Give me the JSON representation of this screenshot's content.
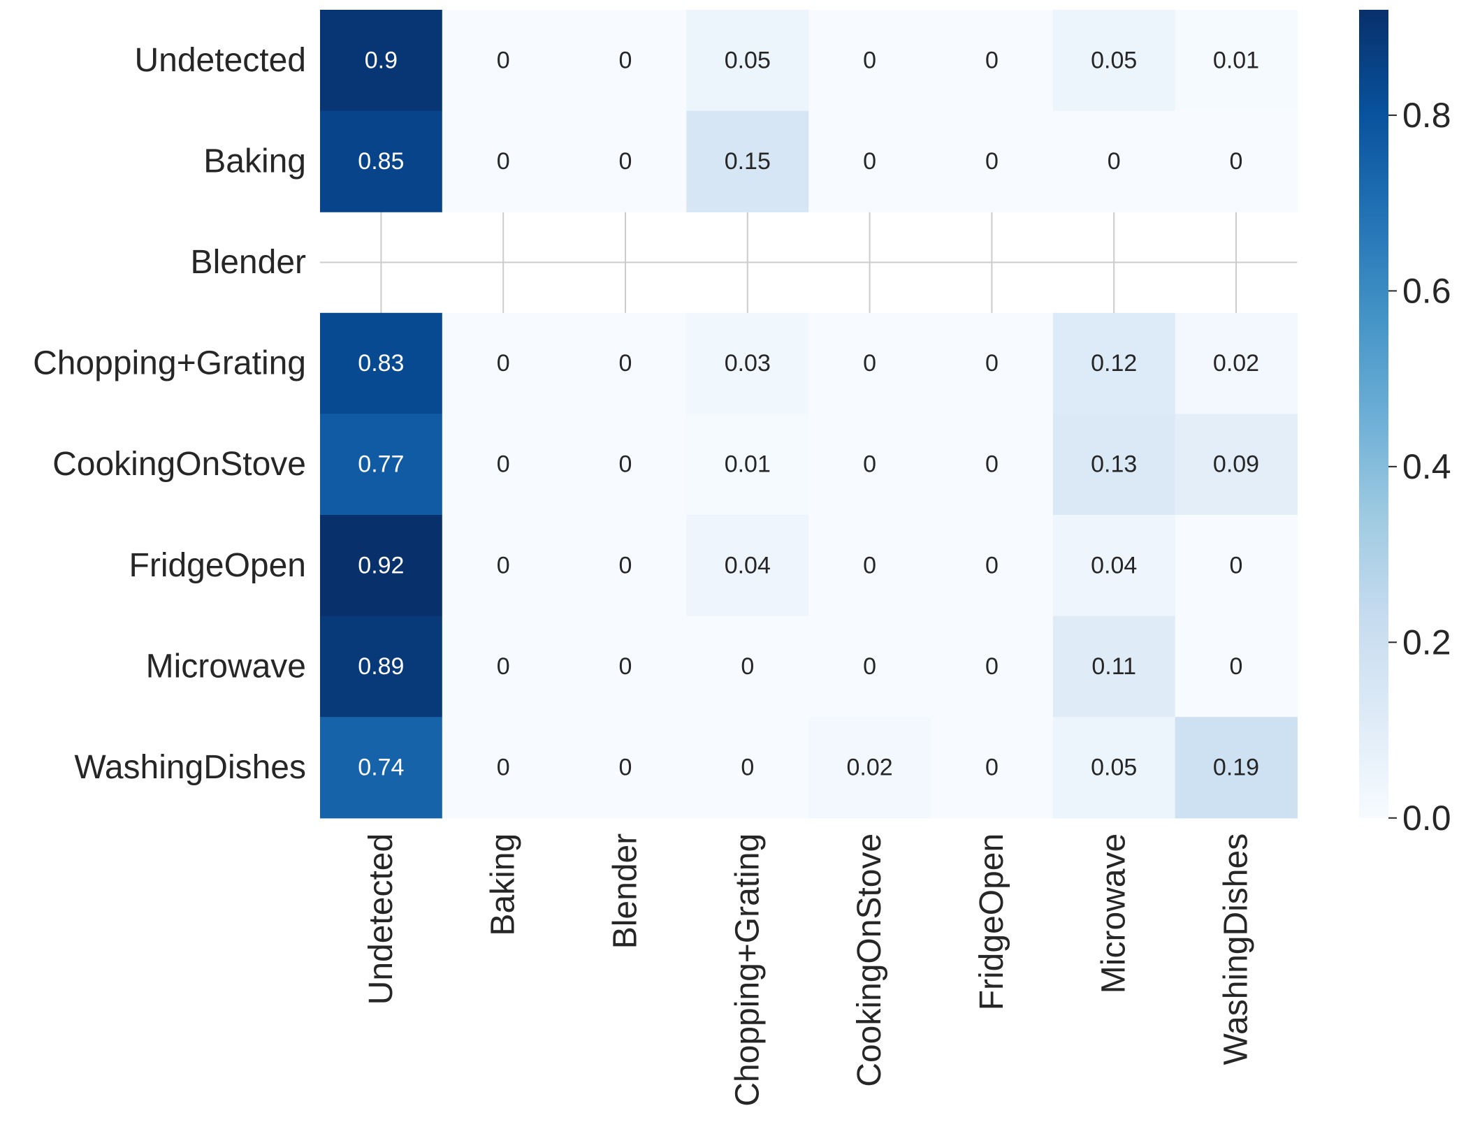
{
  "chart_data": {
    "type": "heatmap",
    "title": "",
    "xlabel": "",
    "ylabel": "",
    "rows": [
      "Undetected",
      "Baking",
      "Blender",
      "Chopping+Grating",
      "CookingOnStove",
      "FridgeOpen",
      "Microwave",
      "WashingDishes"
    ],
    "columns": [
      "Undetected",
      "Baking",
      "Blender",
      "Chopping+Grating",
      "CookingOnStove",
      "FridgeOpen",
      "Microwave",
      "WashingDishes"
    ],
    "values": [
      [
        0.9,
        0,
        0,
        0.05,
        0,
        0,
        0.05,
        0.01
      ],
      [
        0.85,
        0,
        0,
        0.15,
        0,
        0,
        0,
        0
      ],
      [
        null,
        null,
        null,
        null,
        null,
        null,
        null,
        null
      ],
      [
        0.83,
        0,
        0,
        0.03,
        0,
        0,
        0.12,
        0.02
      ],
      [
        0.77,
        0,
        0,
        0.01,
        0,
        0,
        0.13,
        0.09
      ],
      [
        0.92,
        0,
        0,
        0.04,
        0,
        0,
        0.04,
        0
      ],
      [
        0.89,
        0,
        0,
        0,
        0,
        0,
        0.11,
        0
      ],
      [
        0.74,
        0,
        0,
        0,
        0.02,
        0,
        0.05,
        0.19
      ]
    ],
    "colormap": "Blues",
    "colorbar": {
      "range": [
        0,
        0.92
      ],
      "ticks": [
        0.0,
        0.2,
        0.4,
        0.6,
        0.8
      ],
      "tick_labels": [
        "0.0",
        "0.2",
        "0.4",
        "0.6",
        "0.8"
      ],
      "position": "right"
    },
    "grid": true,
    "colors": {
      "min": "#f7fbff",
      "max": "#08306b",
      "grid_line": "#cccccc",
      "label_dark": "#262626",
      "label_light": "#ffffff"
    }
  }
}
